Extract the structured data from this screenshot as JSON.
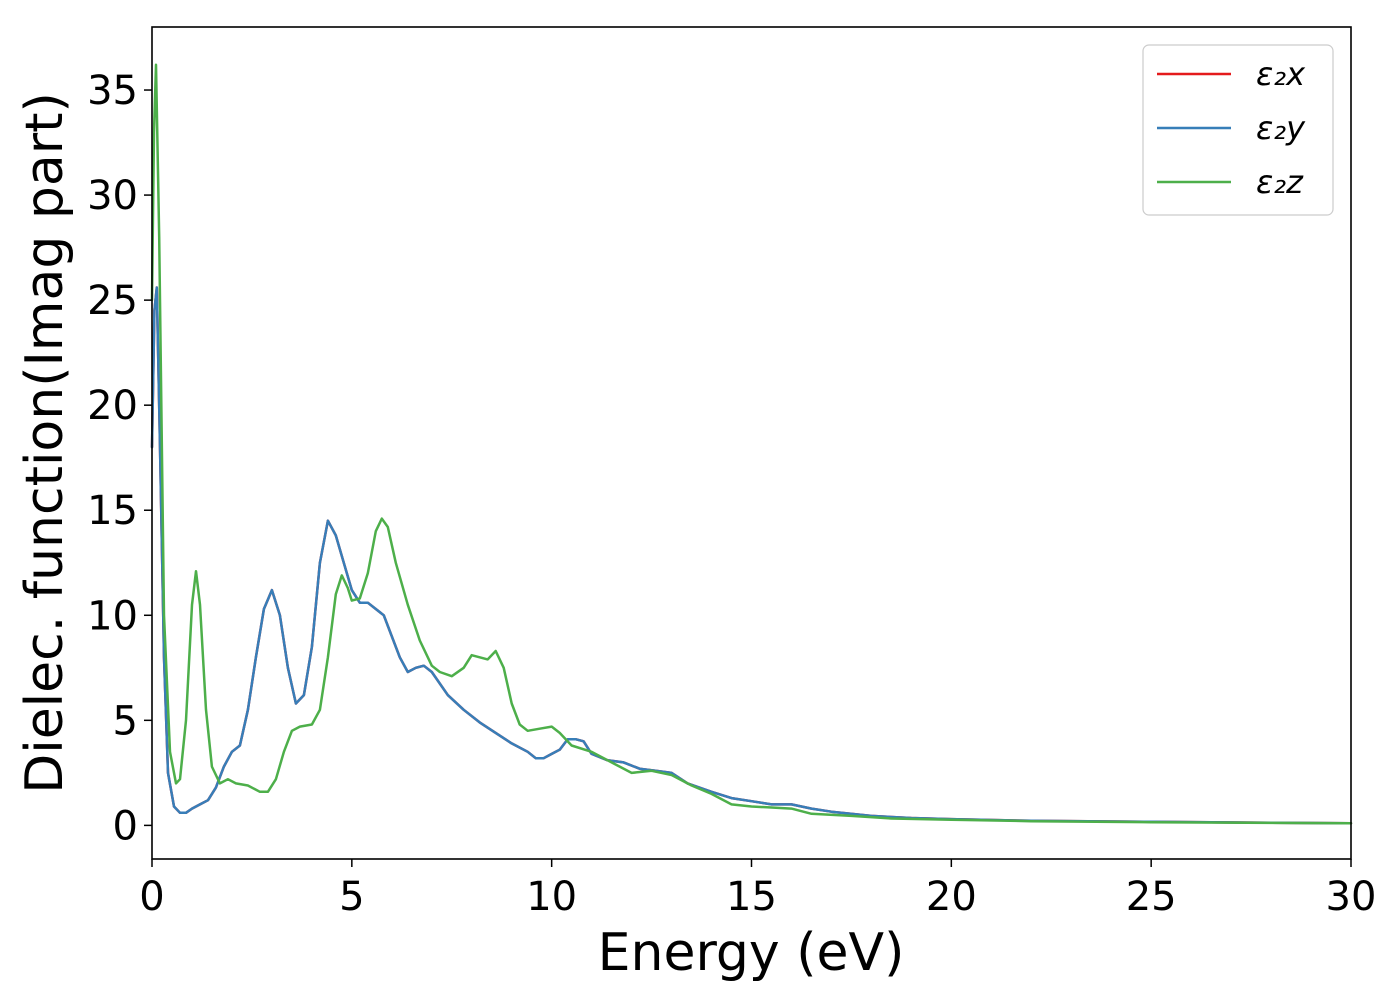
{
  "chart_data": {
    "type": "line",
    "xlabel": "Energy (eV)",
    "ylabel": "Dielec. function(Imag part)",
    "xlim": [
      0,
      30
    ],
    "ylim": [
      -1.6,
      38
    ],
    "xticks": [
      0,
      5,
      10,
      15,
      20,
      25,
      30
    ],
    "yticks": [
      0,
      5,
      10,
      15,
      20,
      25,
      30,
      35
    ],
    "grid": false,
    "legend_position": "top-right",
    "series": [
      {
        "name": "ε₂x",
        "color": "#e41a1c",
        "points": [
          [
            0.0,
            18.0
          ],
          [
            0.06,
            24.5
          ],
          [
            0.12,
            25.6
          ],
          [
            0.2,
            18.0
          ],
          [
            0.3,
            8.0
          ],
          [
            0.4,
            2.5
          ],
          [
            0.55,
            0.9
          ],
          [
            0.7,
            0.6
          ],
          [
            0.85,
            0.6
          ],
          [
            1.0,
            0.8
          ],
          [
            1.2,
            1.0
          ],
          [
            1.4,
            1.2
          ],
          [
            1.6,
            1.8
          ],
          [
            1.8,
            2.8
          ],
          [
            2.0,
            3.5
          ],
          [
            2.2,
            3.8
          ],
          [
            2.4,
            5.5
          ],
          [
            2.6,
            8.0
          ],
          [
            2.8,
            10.3
          ],
          [
            3.0,
            11.2
          ],
          [
            3.2,
            10.0
          ],
          [
            3.4,
            7.5
          ],
          [
            3.6,
            5.8
          ],
          [
            3.8,
            6.2
          ],
          [
            4.0,
            8.5
          ],
          [
            4.2,
            12.5
          ],
          [
            4.4,
            14.5
          ],
          [
            4.6,
            13.8
          ],
          [
            4.8,
            12.5
          ],
          [
            5.0,
            11.2
          ],
          [
            5.2,
            10.6
          ],
          [
            5.4,
            10.6
          ],
          [
            5.6,
            10.3
          ],
          [
            5.8,
            10.0
          ],
          [
            6.0,
            9.0
          ],
          [
            6.2,
            8.0
          ],
          [
            6.4,
            7.3
          ],
          [
            6.6,
            7.5
          ],
          [
            6.8,
            7.6
          ],
          [
            7.0,
            7.3
          ],
          [
            7.4,
            6.2
          ],
          [
            7.8,
            5.5
          ],
          [
            8.2,
            4.9
          ],
          [
            8.6,
            4.4
          ],
          [
            9.0,
            3.9
          ],
          [
            9.4,
            3.5
          ],
          [
            9.6,
            3.2
          ],
          [
            9.8,
            3.2
          ],
          [
            10.0,
            3.4
          ],
          [
            10.2,
            3.6
          ],
          [
            10.4,
            4.1
          ],
          [
            10.6,
            4.1
          ],
          [
            10.8,
            4.0
          ],
          [
            11.0,
            3.4
          ],
          [
            11.4,
            3.1
          ],
          [
            11.8,
            3.0
          ],
          [
            12.2,
            2.7
          ],
          [
            12.6,
            2.6
          ],
          [
            13.0,
            2.5
          ],
          [
            13.4,
            2.0
          ],
          [
            14.0,
            1.6
          ],
          [
            14.5,
            1.3
          ],
          [
            15.0,
            1.15
          ],
          [
            15.5,
            1.0
          ],
          [
            16.0,
            1.0
          ],
          [
            16.5,
            0.8
          ],
          [
            17.0,
            0.65
          ],
          [
            18.0,
            0.45
          ],
          [
            19.0,
            0.35
          ],
          [
            20.0,
            0.3
          ],
          [
            22.0,
            0.22
          ],
          [
            25.0,
            0.17
          ],
          [
            28.0,
            0.13
          ],
          [
            30.0,
            0.1
          ]
        ]
      },
      {
        "name": "ε₂y",
        "color": "#377eb8",
        "points": [
          [
            0.0,
            18.0
          ],
          [
            0.06,
            24.5
          ],
          [
            0.12,
            25.6
          ],
          [
            0.2,
            18.0
          ],
          [
            0.3,
            8.0
          ],
          [
            0.4,
            2.5
          ],
          [
            0.55,
            0.9
          ],
          [
            0.7,
            0.6
          ],
          [
            0.85,
            0.6
          ],
          [
            1.0,
            0.8
          ],
          [
            1.2,
            1.0
          ],
          [
            1.4,
            1.2
          ],
          [
            1.6,
            1.8
          ],
          [
            1.8,
            2.8
          ],
          [
            2.0,
            3.5
          ],
          [
            2.2,
            3.8
          ],
          [
            2.4,
            5.5
          ],
          [
            2.6,
            8.0
          ],
          [
            2.8,
            10.3
          ],
          [
            3.0,
            11.2
          ],
          [
            3.2,
            10.0
          ],
          [
            3.4,
            7.5
          ],
          [
            3.6,
            5.8
          ],
          [
            3.8,
            6.2
          ],
          [
            4.0,
            8.5
          ],
          [
            4.2,
            12.5
          ],
          [
            4.4,
            14.5
          ],
          [
            4.6,
            13.8
          ],
          [
            4.8,
            12.5
          ],
          [
            5.0,
            11.2
          ],
          [
            5.2,
            10.6
          ],
          [
            5.4,
            10.6
          ],
          [
            5.6,
            10.3
          ],
          [
            5.8,
            10.0
          ],
          [
            6.0,
            9.0
          ],
          [
            6.2,
            8.0
          ],
          [
            6.4,
            7.3
          ],
          [
            6.6,
            7.5
          ],
          [
            6.8,
            7.6
          ],
          [
            7.0,
            7.3
          ],
          [
            7.4,
            6.2
          ],
          [
            7.8,
            5.5
          ],
          [
            8.2,
            4.9
          ],
          [
            8.6,
            4.4
          ],
          [
            9.0,
            3.9
          ],
          [
            9.4,
            3.5
          ],
          [
            9.6,
            3.2
          ],
          [
            9.8,
            3.2
          ],
          [
            10.0,
            3.4
          ],
          [
            10.2,
            3.6
          ],
          [
            10.4,
            4.1
          ],
          [
            10.6,
            4.1
          ],
          [
            10.8,
            4.0
          ],
          [
            11.0,
            3.4
          ],
          [
            11.4,
            3.1
          ],
          [
            11.8,
            3.0
          ],
          [
            12.2,
            2.7
          ],
          [
            12.6,
            2.6
          ],
          [
            13.0,
            2.5
          ],
          [
            13.4,
            2.0
          ],
          [
            14.0,
            1.6
          ],
          [
            14.5,
            1.3
          ],
          [
            15.0,
            1.15
          ],
          [
            15.5,
            1.0
          ],
          [
            16.0,
            1.0
          ],
          [
            16.5,
            0.8
          ],
          [
            17.0,
            0.65
          ],
          [
            18.0,
            0.45
          ],
          [
            19.0,
            0.35
          ],
          [
            20.0,
            0.3
          ],
          [
            22.0,
            0.22
          ],
          [
            25.0,
            0.17
          ],
          [
            28.0,
            0.13
          ],
          [
            30.0,
            0.1
          ]
        ]
      },
      {
        "name": "ε₂z",
        "color": "#4daf4a",
        "points": [
          [
            0.0,
            25.0
          ],
          [
            0.05,
            33.0
          ],
          [
            0.1,
            36.2
          ],
          [
            0.18,
            28.0
          ],
          [
            0.3,
            10.0
          ],
          [
            0.45,
            3.5
          ],
          [
            0.6,
            2.0
          ],
          [
            0.7,
            2.2
          ],
          [
            0.85,
            5.0
          ],
          [
            1.0,
            10.5
          ],
          [
            1.1,
            12.1
          ],
          [
            1.2,
            10.5
          ],
          [
            1.35,
            5.5
          ],
          [
            1.5,
            2.8
          ],
          [
            1.7,
            2.0
          ],
          [
            1.9,
            2.2
          ],
          [
            2.1,
            2.0
          ],
          [
            2.4,
            1.9
          ],
          [
            2.7,
            1.6
          ],
          [
            2.9,
            1.6
          ],
          [
            3.1,
            2.2
          ],
          [
            3.3,
            3.5
          ],
          [
            3.5,
            4.5
          ],
          [
            3.7,
            4.7
          ],
          [
            4.0,
            4.8
          ],
          [
            4.2,
            5.5
          ],
          [
            4.4,
            8.0
          ],
          [
            4.6,
            11.0
          ],
          [
            4.75,
            11.9
          ],
          [
            4.9,
            11.3
          ],
          [
            5.0,
            10.7
          ],
          [
            5.2,
            10.8
          ],
          [
            5.4,
            12.0
          ],
          [
            5.6,
            14.0
          ],
          [
            5.75,
            14.6
          ],
          [
            5.9,
            14.2
          ],
          [
            6.1,
            12.5
          ],
          [
            6.4,
            10.5
          ],
          [
            6.7,
            8.8
          ],
          [
            7.0,
            7.6
          ],
          [
            7.2,
            7.3
          ],
          [
            7.5,
            7.1
          ],
          [
            7.8,
            7.5
          ],
          [
            8.0,
            8.1
          ],
          [
            8.2,
            8.0
          ],
          [
            8.4,
            7.9
          ],
          [
            8.6,
            8.3
          ],
          [
            8.8,
            7.5
          ],
          [
            9.0,
            5.8
          ],
          [
            9.2,
            4.8
          ],
          [
            9.4,
            4.5
          ],
          [
            9.7,
            4.6
          ],
          [
            10.0,
            4.7
          ],
          [
            10.2,
            4.4
          ],
          [
            10.5,
            3.8
          ],
          [
            11.0,
            3.5
          ],
          [
            11.5,
            3.0
          ],
          [
            12.0,
            2.5
          ],
          [
            12.5,
            2.6
          ],
          [
            13.0,
            2.4
          ],
          [
            13.5,
            1.9
          ],
          [
            14.0,
            1.5
          ],
          [
            14.5,
            1.0
          ],
          [
            15.0,
            0.9
          ],
          [
            15.5,
            0.85
          ],
          [
            16.0,
            0.8
          ],
          [
            16.5,
            0.55
          ],
          [
            17.5,
            0.45
          ],
          [
            18.5,
            0.33
          ],
          [
            20.0,
            0.27
          ],
          [
            22.0,
            0.2
          ],
          [
            25.0,
            0.15
          ],
          [
            28.0,
            0.12
          ],
          [
            30.0,
            0.1
          ]
        ]
      }
    ]
  }
}
